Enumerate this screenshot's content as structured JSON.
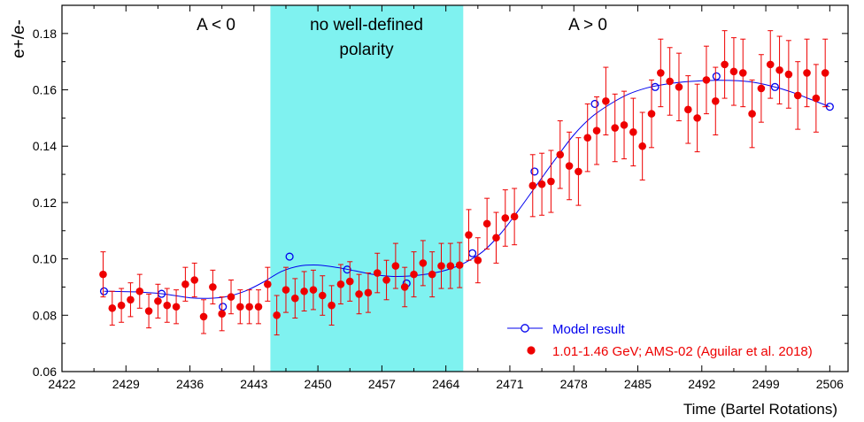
{
  "chart_data": {
    "type": "scatter",
    "title": "",
    "xlabel": "Time (Bartel Rotations)",
    "ylabel": "e+/e-",
    "xlim": [
      2422,
      2508
    ],
    "ylim": [
      0.06,
      0.19
    ],
    "x_ticks": [
      2422,
      2429,
      2436,
      2443,
      2450,
      2457,
      2464,
      2471,
      2478,
      2485,
      2492,
      2499,
      2506
    ],
    "y_ticks": [
      0.06,
      0.08,
      0.1,
      0.12,
      0.14,
      0.16,
      0.18
    ],
    "y_tick_labels": [
      "0.06",
      "0.08",
      "0.10",
      "0.12",
      "0.14",
      "0.16",
      "0.18"
    ],
    "shaded_region": {
      "x_range": [
        2444.8,
        2465.9
      ],
      "color": "#7ff2f0"
    },
    "annotations": {
      "left_label": "A < 0",
      "middle_line1": "no well-defined",
      "middle_line2": "polarity",
      "right_label": "A > 0"
    },
    "legend": {
      "placement": "bottom-right",
      "model_label": "Model result",
      "data_label": "1.01-1.46 GeV; AMS-02 (Aguilar et al. 2018)"
    },
    "colors": {
      "model": "#0000ee",
      "data": "#ee0000"
    },
    "series": [
      {
        "name": "Model result",
        "style": "line+open-circles",
        "curve": [
          [
            2426.6,
            0.0885
          ],
          [
            2430,
            0.0883
          ],
          [
            2433,
            0.0876
          ],
          [
            2436,
            0.0862
          ],
          [
            2438,
            0.086
          ],
          [
            2440,
            0.0866
          ],
          [
            2442,
            0.0885
          ],
          [
            2444,
            0.0917
          ],
          [
            2446,
            0.0955
          ],
          [
            2448,
            0.0975
          ],
          [
            2450,
            0.0978
          ],
          [
            2452,
            0.097
          ],
          [
            2454,
            0.0958
          ],
          [
            2456,
            0.0945
          ],
          [
            2458,
            0.0938
          ],
          [
            2460,
            0.0939
          ],
          [
            2462,
            0.0946
          ],
          [
            2464,
            0.096
          ],
          [
            2466,
            0.0985
          ],
          [
            2468,
            0.1025
          ],
          [
            2470,
            0.109
          ],
          [
            2472,
            0.1175
          ],
          [
            2474,
            0.1265
          ],
          [
            2476,
            0.1355
          ],
          [
            2478,
            0.144
          ],
          [
            2480,
            0.1505
          ],
          [
            2482,
            0.155
          ],
          [
            2484,
            0.1585
          ],
          [
            2486,
            0.1607
          ],
          [
            2488,
            0.162
          ],
          [
            2490,
            0.1628
          ],
          [
            2492,
            0.1632
          ],
          [
            2494,
            0.1634
          ],
          [
            2496,
            0.1632
          ],
          [
            2498,
            0.1625
          ],
          [
            2500,
            0.161
          ],
          [
            2502,
            0.159
          ],
          [
            2504,
            0.1565
          ],
          [
            2506,
            0.154
          ]
        ],
        "markers": [
          [
            2426.6,
            0.0885
          ],
          [
            2432.9,
            0.0876
          ],
          [
            2439.6,
            0.083
          ],
          [
            2446.9,
            0.1008
          ],
          [
            2453.2,
            0.0962
          ],
          [
            2459.7,
            0.0913
          ],
          [
            2466.9,
            0.102
          ],
          [
            2473.7,
            0.131
          ],
          [
            2480.3,
            0.155
          ],
          [
            2486.9,
            0.161
          ],
          [
            2493.6,
            0.1648
          ],
          [
            2500.0,
            0.161
          ],
          [
            2506.0,
            0.154
          ]
        ]
      },
      {
        "name": "1.01-1.46 GeV; AMS-02 (Aguilar et al. 2018)",
        "style": "filled-circles+error-bars",
        "points": [
          [
            2426.5,
            0.0945,
            0.008
          ],
          [
            2427.5,
            0.0825,
            0.006
          ],
          [
            2428.5,
            0.0835,
            0.006
          ],
          [
            2429.5,
            0.0855,
            0.006
          ],
          [
            2430.5,
            0.0885,
            0.006
          ],
          [
            2431.5,
            0.0815,
            0.006
          ],
          [
            2432.5,
            0.085,
            0.006
          ],
          [
            2433.5,
            0.0835,
            0.006
          ],
          [
            2434.5,
            0.083,
            0.006
          ],
          [
            2435.5,
            0.091,
            0.006
          ],
          [
            2436.5,
            0.0925,
            0.006
          ],
          [
            2437.5,
            0.0795,
            0.006
          ],
          [
            2438.5,
            0.09,
            0.006
          ],
          [
            2439.5,
            0.0805,
            0.006
          ],
          [
            2440.5,
            0.0865,
            0.006
          ],
          [
            2441.5,
            0.083,
            0.006
          ],
          [
            2442.5,
            0.083,
            0.006
          ],
          [
            2443.5,
            0.083,
            0.006
          ],
          [
            2444.5,
            0.091,
            0.006
          ],
          [
            2445.5,
            0.08,
            0.007
          ],
          [
            2446.5,
            0.089,
            0.008
          ],
          [
            2447.5,
            0.086,
            0.007
          ],
          [
            2448.5,
            0.0885,
            0.007
          ],
          [
            2449.5,
            0.089,
            0.007
          ],
          [
            2450.5,
            0.087,
            0.007
          ],
          [
            2451.5,
            0.0835,
            0.007
          ],
          [
            2452.5,
            0.091,
            0.007
          ],
          [
            2453.5,
            0.092,
            0.007
          ],
          [
            2454.5,
            0.0875,
            0.007
          ],
          [
            2455.5,
            0.088,
            0.007
          ],
          [
            2456.5,
            0.095,
            0.007
          ],
          [
            2457.5,
            0.0925,
            0.007
          ],
          [
            2458.5,
            0.0975,
            0.008
          ],
          [
            2459.5,
            0.09,
            0.007
          ],
          [
            2460.5,
            0.0945,
            0.008
          ],
          [
            2461.5,
            0.0985,
            0.008
          ],
          [
            2462.5,
            0.0945,
            0.008
          ],
          [
            2463.5,
            0.0975,
            0.008
          ],
          [
            2464.5,
            0.0975,
            0.008
          ],
          [
            2465.5,
            0.0978,
            0.008
          ],
          [
            2466.5,
            0.1085,
            0.009
          ],
          [
            2467.5,
            0.0995,
            0.008
          ],
          [
            2468.5,
            0.1125,
            0.009
          ],
          [
            2469.5,
            0.1075,
            0.009
          ],
          [
            2470.5,
            0.1145,
            0.01
          ],
          [
            2471.5,
            0.115,
            0.01
          ],
          [
            2473.5,
            0.126,
            0.011
          ],
          [
            2474.5,
            0.1265,
            0.011
          ],
          [
            2475.5,
            0.1275,
            0.011
          ],
          [
            2476.5,
            0.137,
            0.012
          ],
          [
            2477.5,
            0.133,
            0.012
          ],
          [
            2478.5,
            0.131,
            0.012
          ],
          [
            2479.5,
            0.143,
            0.012
          ],
          [
            2480.5,
            0.1455,
            0.012
          ],
          [
            2481.5,
            0.156,
            0.012
          ],
          [
            2482.5,
            0.1465,
            0.012
          ],
          [
            2483.5,
            0.1475,
            0.012
          ],
          [
            2484.5,
            0.145,
            0.012
          ],
          [
            2485.5,
            0.14,
            0.012
          ],
          [
            2486.5,
            0.1515,
            0.012
          ],
          [
            2487.5,
            0.166,
            0.012
          ],
          [
            2488.5,
            0.163,
            0.012
          ],
          [
            2489.5,
            0.161,
            0.012
          ],
          [
            2490.5,
            0.153,
            0.012
          ],
          [
            2491.5,
            0.15,
            0.012
          ],
          [
            2492.5,
            0.1635,
            0.012
          ],
          [
            2493.5,
            0.156,
            0.012
          ],
          [
            2494.5,
            0.169,
            0.012
          ],
          [
            2495.5,
            0.1665,
            0.012
          ],
          [
            2496.5,
            0.166,
            0.012
          ],
          [
            2497.5,
            0.1515,
            0.012
          ],
          [
            2498.5,
            0.1605,
            0.012
          ],
          [
            2499.5,
            0.169,
            0.012
          ],
          [
            2500.5,
            0.167,
            0.012
          ],
          [
            2501.5,
            0.1655,
            0.012
          ],
          [
            2502.5,
            0.158,
            0.012
          ],
          [
            2503.5,
            0.166,
            0.012
          ],
          [
            2504.5,
            0.157,
            0.012
          ],
          [
            2505.5,
            0.166,
            0.012
          ]
        ]
      }
    ]
  }
}
